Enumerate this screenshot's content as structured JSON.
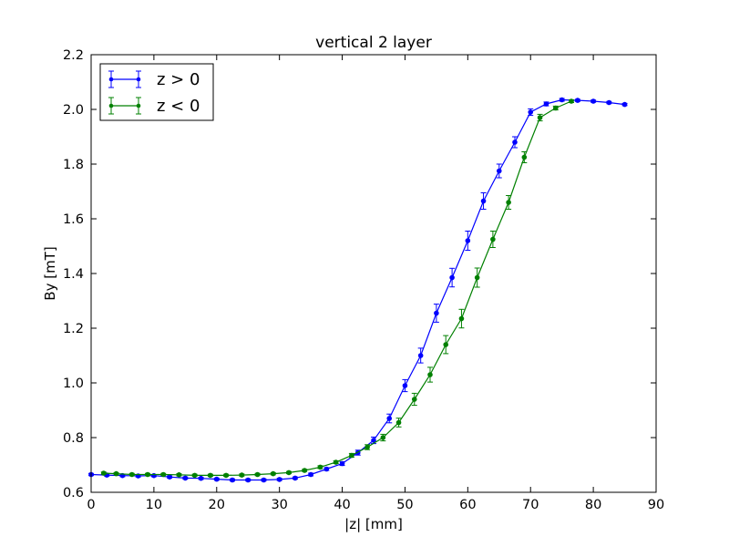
{
  "chart_data": {
    "type": "line",
    "title": "vertical 2 layer",
    "xlabel": "|z| [mm]",
    "ylabel": "By [mT]",
    "xlim": [
      0,
      90
    ],
    "ylim": [
      0.6,
      2.2
    ],
    "xticks": [
      0,
      10,
      20,
      30,
      40,
      50,
      60,
      70,
      80,
      90
    ],
    "yticks": [
      0.6,
      0.8,
      1.0,
      1.2,
      1.4,
      1.6,
      1.8,
      2.0,
      2.2
    ],
    "xtick_labels": [
      "0",
      "10",
      "20",
      "30",
      "40",
      "50",
      "60",
      "70",
      "80",
      "90"
    ],
    "ytick_labels": [
      "0.6",
      "0.8",
      "1.0",
      "1.2",
      "1.4",
      "1.6",
      "1.8",
      "2.0",
      "2.2"
    ],
    "grid": false,
    "legend": "top-left",
    "series": [
      {
        "name": "z > 0",
        "color": "#0000ff",
        "x": [
          0,
          2.5,
          5,
          7.5,
          10,
          12.5,
          15,
          17.5,
          20,
          22.5,
          25,
          27.5,
          30,
          32.5,
          35,
          37.5,
          40,
          42.5,
          45,
          47.5,
          50,
          52.5,
          55,
          57.5,
          60,
          62.5,
          65,
          67.5,
          70,
          72.5,
          75,
          77.5,
          80,
          82.5,
          85
        ],
        "y": [
          0.665,
          0.663,
          0.661,
          0.66,
          0.661,
          0.656,
          0.652,
          0.651,
          0.648,
          0.645,
          0.645,
          0.645,
          0.647,
          0.652,
          0.665,
          0.685,
          0.705,
          0.745,
          0.79,
          0.87,
          0.99,
          1.1,
          1.255,
          1.385,
          1.52,
          1.665,
          1.775,
          1.88,
          1.99,
          2.02,
          2.035,
          2.033,
          2.03,
          2.025,
          2.018
        ],
        "err": [
          0.004,
          0.004,
          0.004,
          0.004,
          0.004,
          0.004,
          0.004,
          0.004,
          0.004,
          0.004,
          0.004,
          0.004,
          0.004,
          0.004,
          0.005,
          0.005,
          0.007,
          0.009,
          0.012,
          0.016,
          0.022,
          0.027,
          0.033,
          0.034,
          0.035,
          0.03,
          0.025,
          0.02,
          0.012,
          0.007,
          0.005,
          0.004,
          0.004,
          0.004,
          0.004
        ]
      },
      {
        "name": "z < 0",
        "color": "#008000",
        "x": [
          2,
          4,
          6.5,
          9,
          11.5,
          14,
          16.5,
          19,
          21.5,
          24,
          26.5,
          29,
          31.5,
          34,
          36.5,
          39,
          41.5,
          44,
          46.5,
          49,
          51.5,
          54,
          56.5,
          59,
          61.5,
          64,
          66.5,
          69,
          71.5,
          74,
          76.5
        ],
        "y": [
          0.67,
          0.668,
          0.665,
          0.665,
          0.665,
          0.664,
          0.662,
          0.662,
          0.662,
          0.663,
          0.665,
          0.668,
          0.672,
          0.68,
          0.692,
          0.71,
          0.735,
          0.765,
          0.8,
          0.855,
          0.94,
          1.03,
          1.14,
          1.235,
          1.385,
          1.525,
          1.66,
          1.825,
          1.97,
          2.005,
          2.03
        ],
        "err": [
          0.004,
          0.004,
          0.004,
          0.004,
          0.004,
          0.004,
          0.004,
          0.004,
          0.004,
          0.004,
          0.004,
          0.004,
          0.004,
          0.004,
          0.005,
          0.005,
          0.007,
          0.009,
          0.012,
          0.016,
          0.022,
          0.027,
          0.033,
          0.034,
          0.035,
          0.03,
          0.025,
          0.02,
          0.012,
          0.007,
          0.005
        ]
      }
    ]
  }
}
